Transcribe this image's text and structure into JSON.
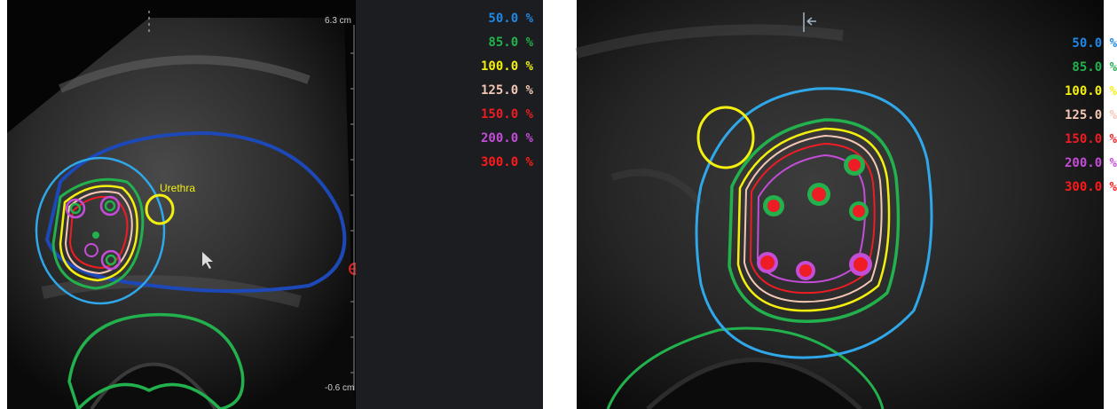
{
  "left_panel": {
    "scale_top": "6.3 cm",
    "scale_bottom": "-0.6 cm",
    "urethra_label": "Urethra",
    "legend": [
      {
        "label": "50.0 %",
        "color": "#1e88e5"
      },
      {
        "label": "85.0 %",
        "color": "#22b14c"
      },
      {
        "label": "100.0 %",
        "color": "#f3f00f"
      },
      {
        "label": "125.0 %",
        "color": "#f4c7b5"
      },
      {
        "label": "150.0 %",
        "color": "#ee1c24"
      },
      {
        "label": "200.0 %",
        "color": "#c44dd8"
      },
      {
        "label": "300.0 %",
        "color": "#ff1a1a"
      }
    ]
  },
  "right_panel": {
    "legend": [
      {
        "label": "50.0 %",
        "color": "#1e88e5"
      },
      {
        "label": "85.0 %",
        "color": "#22b14c"
      },
      {
        "label": "100.0 %",
        "color": "#f3f00f"
      },
      {
        "label": "125.0 %",
        "color": "#f4c7b5"
      },
      {
        "label": "150.0 %",
        "color": "#ee1c24"
      },
      {
        "label": "200.0 %",
        "color": "#c44dd8"
      },
      {
        "label": "300.0 %",
        "color": "#ff1a1a"
      }
    ]
  }
}
